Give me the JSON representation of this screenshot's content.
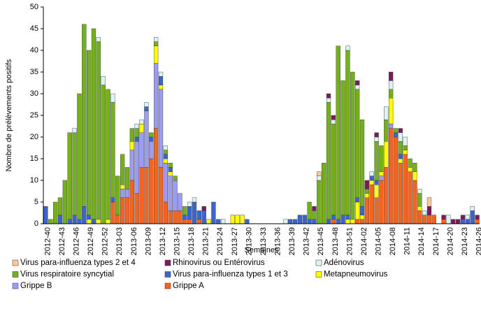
{
  "chart_data": {
    "type": "bar",
    "stacked": true,
    "y_label": "Nombre de prélèvements positifs",
    "x_label": "Semaines",
    "categories": [
      "2012-40",
      null,
      null,
      "2012-43",
      null,
      null,
      "2012-46",
      null,
      null,
      "2012-49",
      null,
      null,
      "2012-52",
      null,
      null,
      "2013-03",
      null,
      null,
      "2013-06",
      null,
      null,
      "2013-09",
      null,
      null,
      "2013-12",
      null,
      null,
      "2013-15",
      null,
      null,
      "2013-18",
      null,
      null,
      "2013-21",
      null,
      null,
      "2013-24",
      null,
      null,
      "2013-27",
      null,
      null,
      "2013-30",
      null,
      null,
      "2013-33",
      null,
      null,
      "2013-36",
      null,
      null,
      "2013-39",
      null,
      null,
      "2013-42",
      null,
      null,
      "2013-45",
      null,
      null,
      "2013-48",
      null,
      null,
      "2013-51",
      null,
      null,
      "2014-02",
      null,
      null,
      "2014-05",
      null,
      null,
      "2014-08",
      null,
      null,
      "2014-11",
      null,
      null,
      "2014-14",
      null,
      null,
      "2014-17",
      null,
      null,
      "2014-20",
      null,
      null,
      "2014-23",
      null,
      null,
      "2014-26"
    ],
    "series": [
      {
        "name": "Virus para-influenza types 2 et 4",
        "color": "#ffc896",
        "values": [
          0,
          0,
          0,
          0,
          0,
          0,
          0,
          0,
          0,
          0,
          0,
          0,
          0,
          0,
          0,
          0,
          0,
          0,
          0,
          0,
          0,
          0,
          0,
          0,
          0,
          0,
          0,
          0,
          0,
          0,
          0,
          0,
          0,
          0,
          0,
          0,
          0,
          0,
          0,
          0,
          0,
          0,
          0,
          0,
          0,
          0,
          0,
          0,
          0,
          0,
          0,
          0,
          0,
          0,
          0,
          0,
          0,
          1,
          0,
          0,
          0,
          0,
          0,
          0,
          0,
          0,
          0,
          0,
          0,
          0,
          0,
          0,
          0,
          0,
          0,
          0,
          0,
          0,
          0,
          0,
          2,
          0,
          0,
          0,
          0,
          0,
          0,
          0,
          0,
          0,
          0
        ]
      },
      {
        "name": "Rhinovirus ou Entérovirus",
        "color": "#7a1c5c",
        "values": [
          0,
          0,
          0,
          0,
          0,
          0,
          0,
          0,
          0,
          0,
          0,
          0,
          0,
          0,
          0,
          0,
          0,
          0,
          0,
          0,
          0,
          0,
          0,
          0,
          0,
          0,
          0,
          0,
          0,
          0,
          0,
          0,
          0,
          1,
          0,
          0,
          0,
          0,
          0,
          0,
          0,
          0,
          0,
          0,
          0,
          0,
          0,
          0,
          0,
          0,
          0,
          0,
          0,
          0,
          0,
          0,
          1,
          0,
          0,
          1,
          1,
          0,
          0,
          0,
          0,
          1,
          0,
          2,
          0,
          1,
          0,
          0,
          2,
          0,
          1,
          0,
          0,
          0,
          0,
          0,
          2,
          0,
          0,
          1,
          0,
          1,
          1,
          1,
          0,
          0,
          1
        ]
      },
      {
        "name": "Adénovirus",
        "color": "#dcf2f5",
        "values": [
          0,
          0,
          0,
          0,
          0,
          0,
          1,
          0,
          0,
          0,
          0,
          1,
          2,
          0,
          2,
          0,
          0,
          0,
          0,
          1,
          1,
          1,
          0,
          1,
          1,
          1,
          0,
          0,
          0,
          0,
          1,
          1,
          0,
          0,
          0,
          0,
          0,
          1,
          0,
          0,
          0,
          0,
          0,
          0,
          0,
          0,
          0,
          0,
          0,
          0,
          1,
          0,
          0,
          0,
          0,
          0,
          0,
          1,
          0,
          1,
          1,
          0,
          0,
          1,
          0,
          1,
          0,
          0,
          1,
          1,
          0,
          3,
          2,
          0,
          2,
          2,
          0,
          0,
          1,
          1,
          0,
          0,
          0,
          0,
          2,
          0,
          0,
          0,
          1,
          1,
          0
        ]
      },
      {
        "name": "Virus respiratoire syncytial",
        "color": "#74b01c",
        "values": [
          0,
          1,
          5,
          4,
          10,
          20,
          19,
          29,
          42,
          38,
          44,
          41,
          32,
          30,
          22,
          9,
          7,
          5,
          3,
          2,
          0,
          0,
          1,
          1,
          0,
          1,
          1,
          1,
          0,
          2,
          0,
          0,
          0,
          0,
          0,
          0,
          0,
          0,
          0,
          0,
          0,
          0,
          0,
          0,
          0,
          0,
          0,
          0,
          0,
          0,
          0,
          0,
          0,
          0,
          0,
          4,
          2,
          10,
          14,
          27,
          21,
          40,
          31,
          38,
          34,
          25,
          20,
          1,
          0,
          9,
          6,
          5,
          2,
          1,
          3,
          1,
          2,
          2,
          3,
          0,
          0,
          0,
          0,
          0,
          0,
          0,
          0,
          0,
          0,
          0,
          0
        ]
      },
      {
        "name": "Virus para-influenza types 1 et 3",
        "color": "#3a66cc",
        "values": [
          4,
          0,
          0,
          2,
          0,
          1,
          2,
          1,
          4,
          1,
          1,
          0,
          0,
          0,
          1,
          0,
          0,
          0,
          0,
          1,
          0,
          1,
          1,
          0,
          2,
          1,
          1,
          0,
          0,
          1,
          3,
          5,
          2,
          3,
          0,
          5,
          1,
          0,
          0,
          0,
          0,
          0,
          1,
          0,
          0,
          0,
          0,
          0,
          0,
          0,
          0,
          1,
          1,
          2,
          2,
          1,
          1,
          0,
          0,
          1,
          1,
          1,
          2,
          1,
          0,
          1,
          2,
          0,
          1,
          1,
          0,
          0,
          0,
          1,
          1,
          0,
          0,
          0,
          0,
          0,
          0,
          0,
          0,
          0,
          0,
          0,
          0,
          1,
          1,
          3,
          0
        ]
      },
      {
        "name": "Metapneumovirus",
        "color": "#ffff00",
        "values": [
          0,
          0,
          0,
          0,
          0,
          0,
          0,
          0,
          0,
          1,
          0,
          1,
          0,
          1,
          0,
          0,
          1,
          0,
          2,
          0,
          2,
          0,
          0,
          4,
          1,
          1,
          1,
          0,
          0,
          0,
          0,
          0,
          0,
          0,
          1,
          0,
          0,
          0,
          0,
          2,
          2,
          2,
          0,
          0,
          0,
          0,
          0,
          0,
          0,
          0,
          0,
          0,
          0,
          0,
          0,
          0,
          0,
          0,
          0,
          0,
          0,
          0,
          0,
          1,
          1,
          4,
          1,
          1,
          1,
          3,
          1,
          6,
          6,
          0,
          1,
          1,
          1,
          2,
          1,
          0,
          0,
          0,
          0,
          0,
          0,
          0,
          0,
          0,
          0,
          0,
          0
        ]
      },
      {
        "name": "Grippe B",
        "color": "#9c9cf5",
        "values": [
          0,
          0,
          0,
          0,
          0,
          0,
          0,
          0,
          0,
          0,
          0,
          0,
          0,
          0,
          0,
          0,
          2,
          2,
          7,
          12,
          8,
          13,
          4,
          15,
          18,
          9,
          8,
          7,
          4,
          0,
          0,
          0,
          0,
          0,
          0,
          0,
          0,
          0,
          0,
          0,
          0,
          0,
          0,
          0,
          0,
          0,
          0,
          0,
          0,
          0,
          0,
          0,
          0,
          0,
          0,
          0,
          0,
          0,
          0,
          0,
          0,
          0,
          0,
          0,
          0,
          0,
          0,
          0,
          0,
          0,
          1,
          0,
          1,
          0,
          0,
          0,
          0,
          0,
          0,
          0,
          0,
          0,
          0,
          0,
          0,
          0,
          0,
          0,
          0,
          0,
          0
        ]
      },
      {
        "name": "Grippe A",
        "color": "#f5641e",
        "values": [
          0,
          0,
          0,
          0,
          0,
          0,
          0,
          0,
          0,
          0,
          0,
          0,
          0,
          0,
          5,
          2,
          6,
          6,
          10,
          7,
          13,
          13,
          15,
          22,
          13,
          5,
          3,
          3,
          3,
          1,
          1,
          0,
          1,
          0,
          0,
          0,
          0,
          0,
          0,
          0,
          0,
          0,
          0,
          0,
          0,
          0,
          0,
          0,
          0,
          0,
          0,
          0,
          0,
          0,
          0,
          0,
          0,
          0,
          0,
          0,
          1,
          0,
          0,
          0,
          0,
          1,
          1,
          6,
          9,
          6,
          10,
          13,
          22,
          20,
          14,
          16,
          12,
          10,
          3,
          2,
          2,
          2,
          0,
          1,
          0,
          0,
          0,
          0,
          0,
          0,
          1
        ]
      }
    ],
    "ylim": [
      0,
      50
    ],
    "yticks": [
      0,
      5,
      10,
      15,
      20,
      25,
      30,
      35,
      40,
      45,
      50
    ],
    "grid": false,
    "legend": "bottom"
  }
}
